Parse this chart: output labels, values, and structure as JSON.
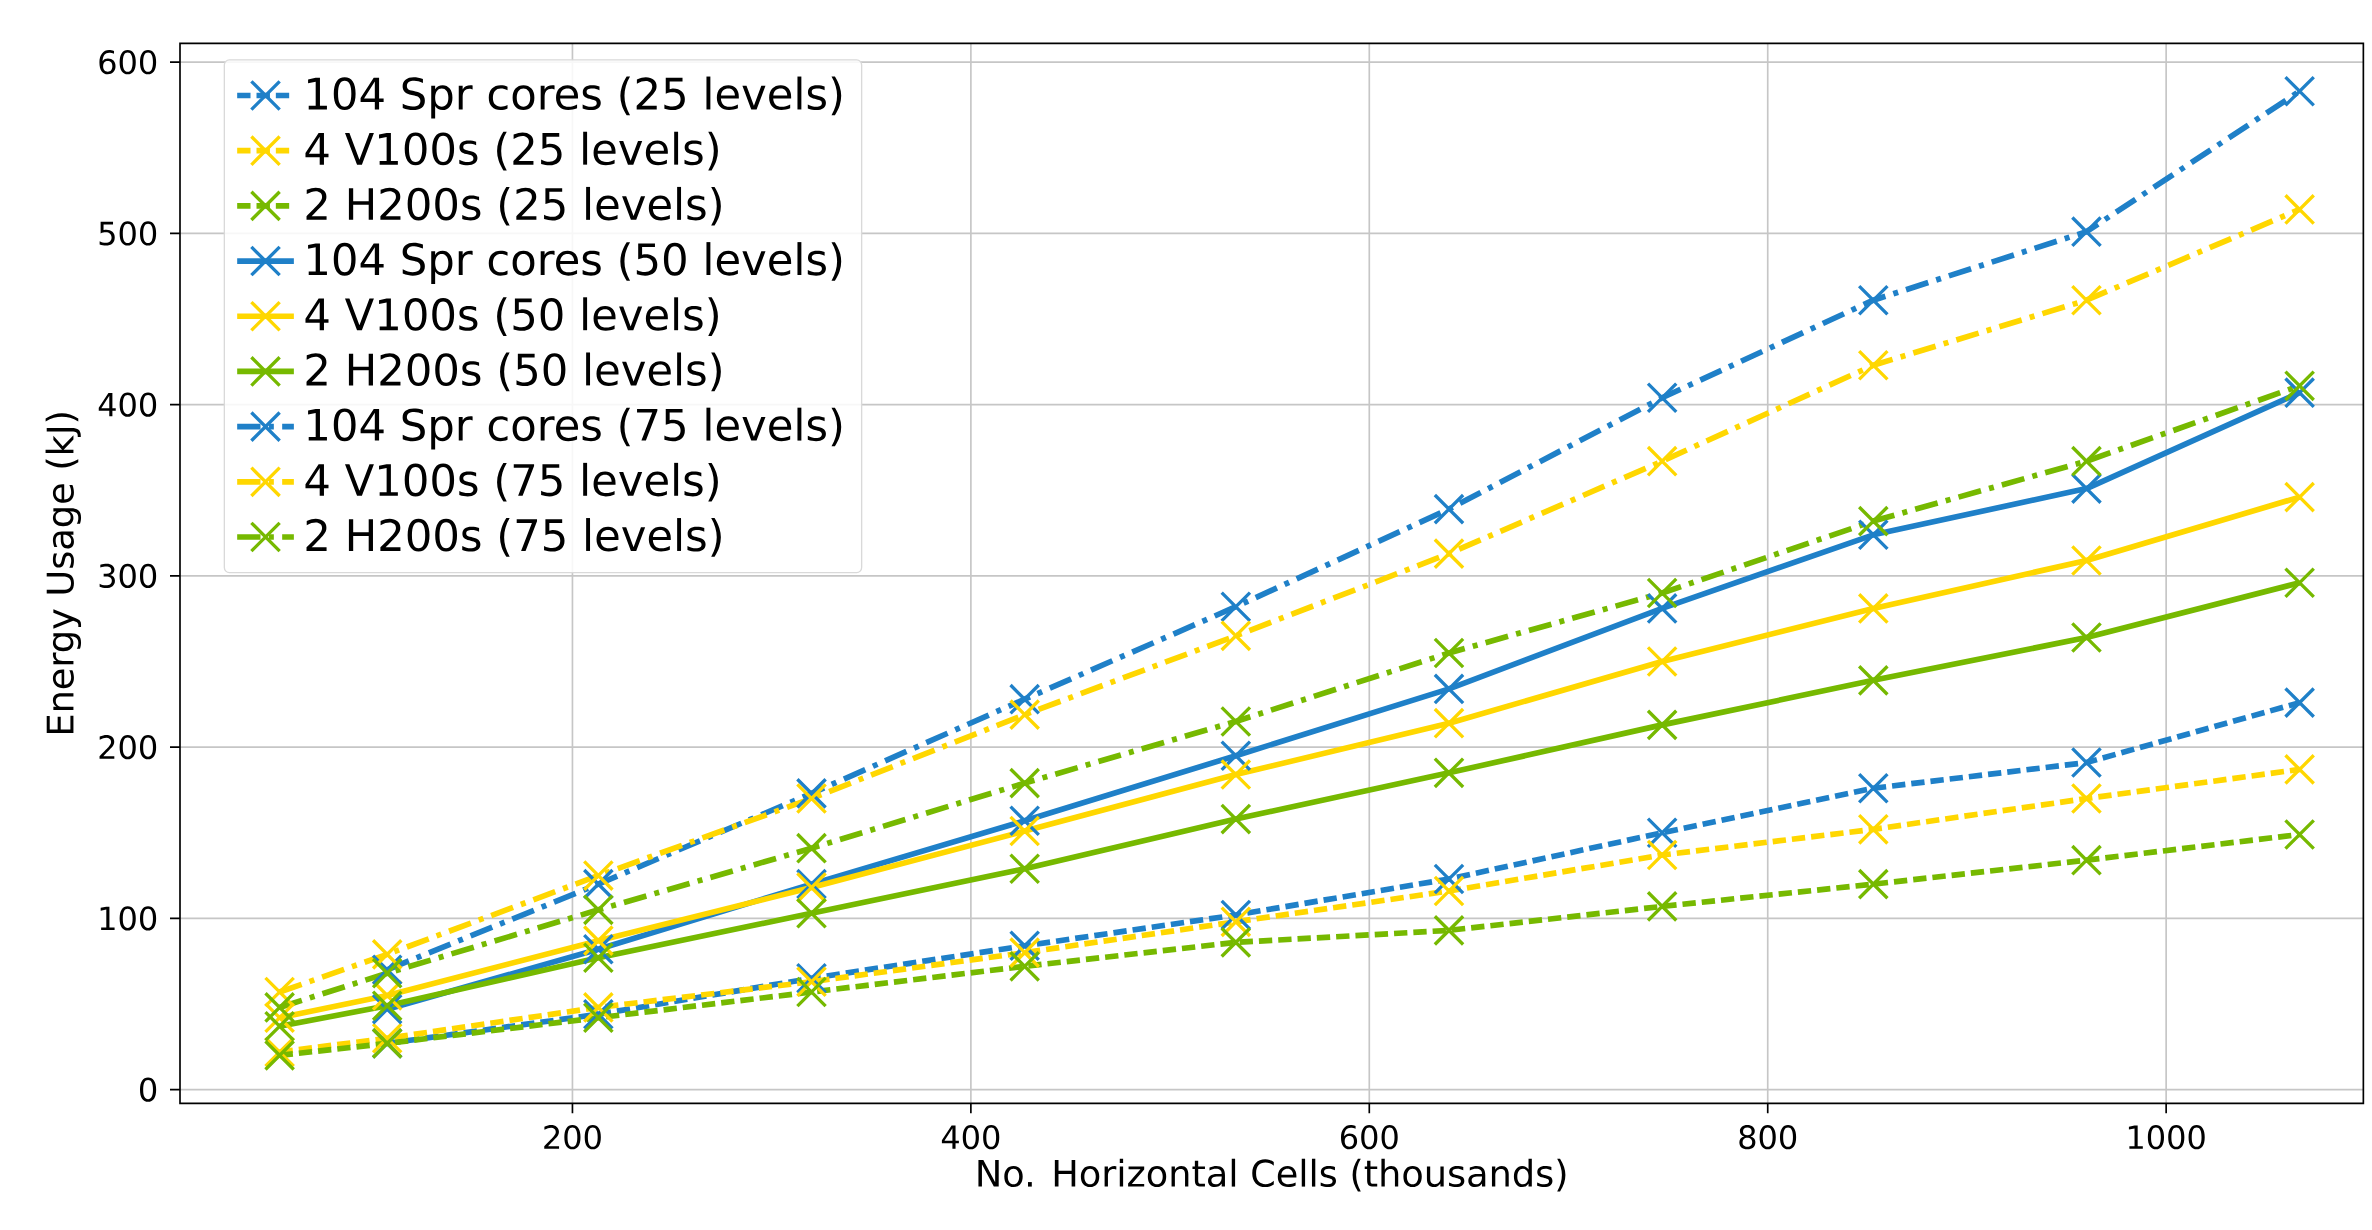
{
  "chart_data": {
    "type": "line",
    "xlabel": "No. Horizontal Cells (thousands)",
    "ylabel": "Energy Usage (kJ)",
    "x": [
      53,
      107,
      213,
      320,
      427,
      533,
      640,
      747,
      853,
      960,
      1067
    ],
    "xlim": [
      3,
      1099
    ],
    "ylim": [
      -8,
      611
    ],
    "xticks": [
      200,
      400,
      600,
      800,
      1000
    ],
    "yticks": [
      0,
      100,
      200,
      300,
      400,
      500,
      600
    ],
    "grid": true,
    "legend": "top left",
    "marker": "cross",
    "series": [
      {
        "name": "104 Spr cores (25 levels)",
        "color": "#1f80c8",
        "line_style": "dashed",
        "values": [
          null,
          27,
          44,
          65,
          84,
          102,
          123,
          150,
          176,
          191,
          226
        ]
      },
      {
        "name": "4 V100s (25 levels)",
        "color": "#ffd700",
        "line_style": "dashed",
        "values": [
          22,
          30,
          48,
          63,
          80,
          98,
          116,
          137,
          152,
          170,
          187
        ]
      },
      {
        "name": "2 H200s (25 levels)",
        "color": "#76b900",
        "line_style": "dashed",
        "values": [
          20,
          27,
          42,
          57,
          72,
          86,
          93,
          107,
          120,
          134,
          149
        ]
      },
      {
        "name": "104 Spr cores (50 levels)",
        "color": "#1f80c8",
        "line_style": "solid",
        "values": [
          null,
          47,
          82,
          120,
          157,
          195,
          234,
          281,
          324,
          351,
          407
        ]
      },
      {
        "name": "4 V100s (50 levels)",
        "color": "#ffd700",
        "line_style": "solid",
        "values": [
          42,
          55,
          87,
          118,
          151,
          184,
          214,
          250,
          281,
          309,
          346
        ]
      },
      {
        "name": "2 H200s (50 levels)",
        "color": "#76b900",
        "line_style": "solid",
        "values": [
          37,
          49,
          77,
          103,
          129,
          158,
          185,
          213,
          239,
          264,
          296
        ]
      },
      {
        "name": "104 Spr cores (75 levels)",
        "color": "#1f80c8",
        "line_style": "dashdot",
        "values": [
          null,
          70,
          120,
          173,
          228,
          282,
          339,
          404,
          461,
          501,
          583
        ]
      },
      {
        "name": "4 V100s (75 levels)",
        "color": "#ffd700",
        "line_style": "dashdot",
        "values": [
          57,
          79,
          125,
          170,
          219,
          265,
          313,
          367,
          423,
          461,
          514
        ]
      },
      {
        "name": "2 H200s (75 levels)",
        "color": "#76b900",
        "line_style": "dashdot",
        "values": [
          48,
          68,
          105,
          141,
          179,
          215,
          255,
          290,
          332,
          367,
          411
        ]
      }
    ]
  }
}
